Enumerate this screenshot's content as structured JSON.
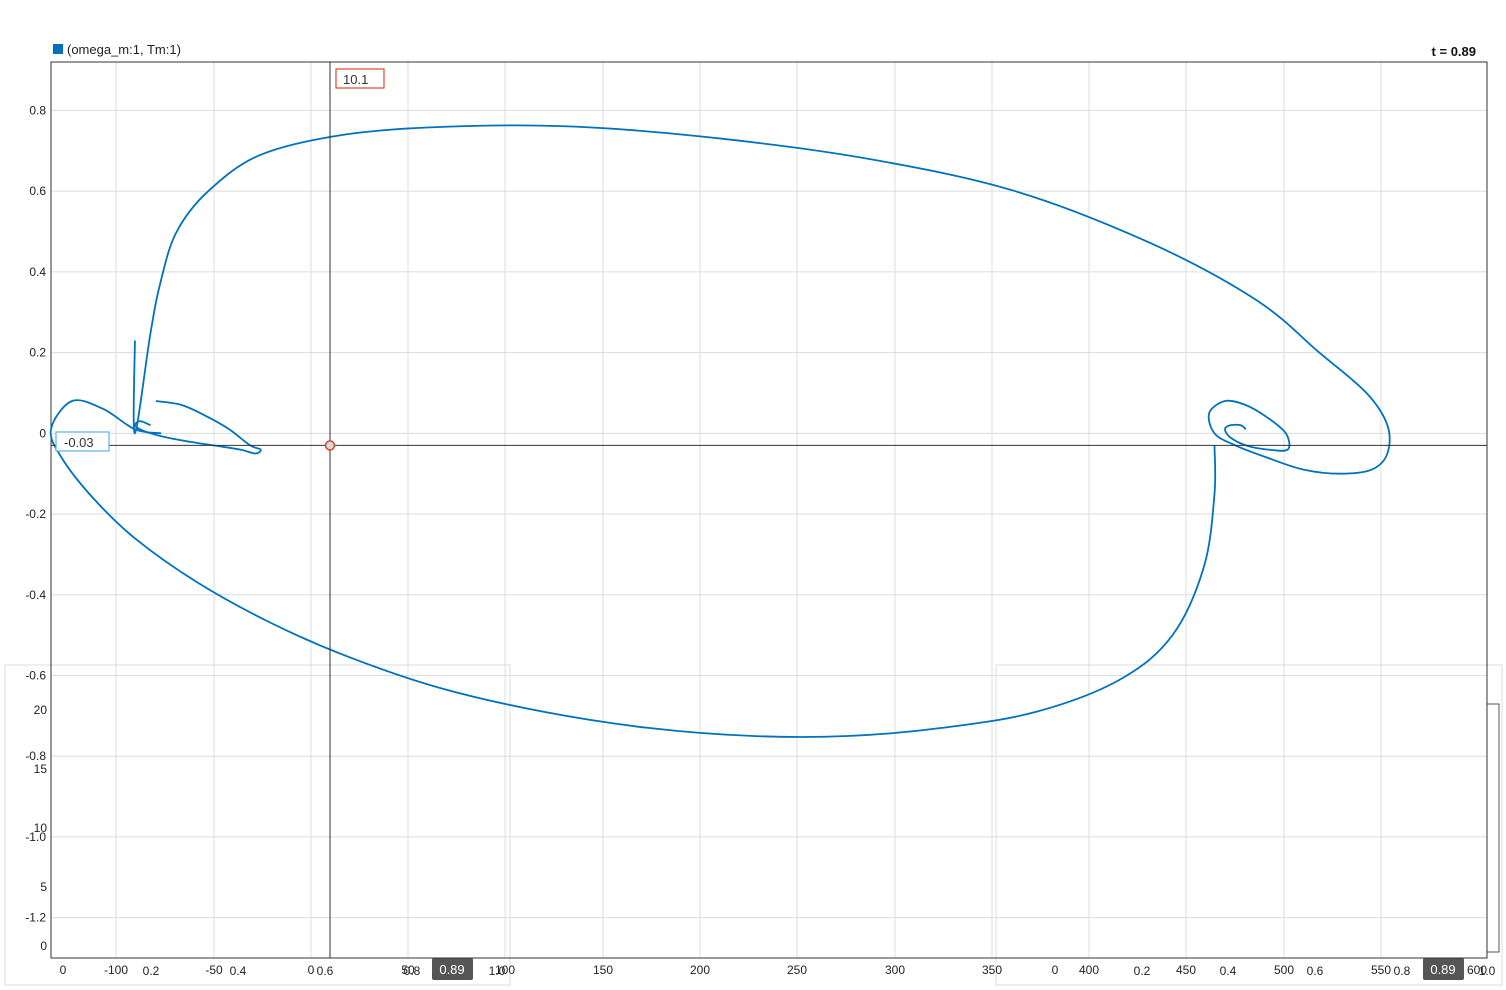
{
  "chart_data": {
    "type": "line",
    "title": "",
    "xlabel": "",
    "ylabel": "",
    "legend": {
      "position": "top-left",
      "label": "(omega_m:1, Tm:1)",
      "color": "#0072BD"
    },
    "time_label": "t = 0.89",
    "grid": true,
    "xlim": [
      -1.0,
      12.7
    ],
    "ylim": [
      -1.3,
      0.92
    ],
    "xticks": [],
    "yticks": [
      "0.8",
      "0.6",
      "0.4",
      "0.2",
      "0",
      "-0.2",
      "-0.4",
      "-0.6",
      "-0.8",
      "-1.0",
      "-1.2"
    ],
    "cursor": {
      "x": 10.1,
      "y": -0.03,
      "x_label": "10.1",
      "y_label": "-0.03"
    },
    "series": [
      {
        "color": "#0072BD",
        "x": [
          -0.2,
          -0.2,
          -0.05,
          0.05,
          0.2,
          0.5,
          1.0,
          1.8,
          2.8,
          4.0,
          5.4,
          6.8,
          8.2,
          9.5,
          10.5,
          11.1,
          11.55,
          11.75,
          11.75,
          11.6,
          11.3,
          10.95,
          10.6,
          10.3,
          10.1,
          10.05,
          10.2,
          10.4,
          10.6,
          10.78,
          10.8,
          10.6,
          10.4,
          10.25,
          10.2,
          10.25,
          10.35,
          10.4
        ],
        "y": [
          0.23,
          0.0,
          0.25,
          0.38,
          0.5,
          0.6,
          0.69,
          0.74,
          0.76,
          0.76,
          0.73,
          0.68,
          0.6,
          0.47,
          0.33,
          0.2,
          0.1,
          0.02,
          -0.05,
          -0.09,
          -0.1,
          -0.09,
          -0.06,
          -0.03,
          0.0,
          0.05,
          0.08,
          0.07,
          0.04,
          0.0,
          -0.04,
          -0.04,
          -0.03,
          -0.01,
          0.01,
          0.02,
          0.02,
          0.01
        ]
      },
      {
        "color": "#0072BD",
        "x": [
          0.05,
          -0.2,
          -0.5,
          -0.8,
          -1.0,
          -0.9,
          -0.6,
          -0.2,
          0.4,
          1.1,
          1.8,
          2.7,
          3.7,
          4.7,
          5.7,
          6.6,
          7.5,
          8.4,
          9.2,
          9.7,
          10.0,
          10.1,
          10.1
        ],
        "y": [
          0.0,
          0.01,
          0.06,
          0.08,
          0.01,
          -0.06,
          -0.16,
          -0.26,
          -0.37,
          -0.47,
          -0.55,
          -0.63,
          -0.69,
          -0.73,
          -0.75,
          -0.75,
          -0.73,
          -0.69,
          -0.61,
          -0.5,
          -0.33,
          -0.15,
          -0.03
        ]
      },
      {
        "color": "#0072BD",
        "x": [
          0.0,
          0.25,
          0.5,
          0.7,
          0.9,
          1.0,
          0.95,
          0.8,
          0.55,
          0.3,
          0.1,
          -0.05,
          -0.15,
          -0.2,
          -0.15,
          -0.05
        ],
        "y": [
          0.08,
          0.07,
          0.04,
          0.01,
          -0.03,
          -0.04,
          -0.05,
          -0.04,
          -0.03,
          -0.02,
          -0.01,
          0.0,
          0.01,
          0.02,
          0.03,
          0.02
        ]
      }
    ]
  },
  "bg_panel": {
    "yticks": [
      "20",
      "15",
      "10",
      "5",
      "0"
    ],
    "xticks": [
      "0",
      "-100",
      "-50",
      "0",
      "50",
      "100",
      "150",
      "200",
      "250",
      "300",
      "350",
      "0",
      "400",
      "450",
      "500",
      "550",
      "600"
    ],
    "xticks_small": [
      "0.2",
      "0.4",
      "0.6",
      "0.8",
      "1.0",
      "0.2",
      "0.4",
      "0.6",
      "0.8",
      "1.0"
    ],
    "time_badges": [
      "0.89",
      "0.89"
    ]
  }
}
